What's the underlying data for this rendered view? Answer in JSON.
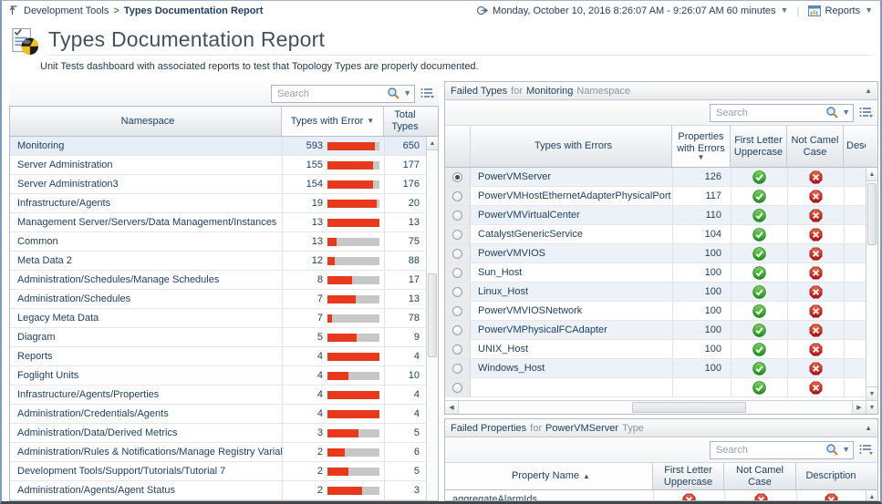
{
  "header": {
    "breadcrumb": {
      "parent": "Development Tools",
      "separator": ">",
      "current": "Types Documentation Report"
    },
    "time_range": {
      "label": "Monday, October 10, 2016 8:26:07 AM - 9:26:07 AM 60 minutes"
    },
    "reports_label": "Reports",
    "title": "Types Documentation Report",
    "subtitle": "Unit Tests dashboard with associated reports to test that Topology Types are properly documented."
  },
  "namespace_table": {
    "search_placeholder": "Search",
    "columns": [
      {
        "label": "Namespace",
        "sort": null
      },
      {
        "label": "Types with Error",
        "sort": "desc"
      },
      {
        "label": "Total Types",
        "sort": null
      }
    ],
    "rows": [
      {
        "name": "Monitoring",
        "errors": 593,
        "total": 650,
        "selected": true
      },
      {
        "name": "Server Administration",
        "errors": 155,
        "total": 177
      },
      {
        "name": "Server Administration3",
        "errors": 154,
        "total": 176
      },
      {
        "name": "Infrastructure/Agents",
        "errors": 19,
        "total": 20
      },
      {
        "name": "Management Server/Servers/Data Management/Instances",
        "errors": 13,
        "total": 13
      },
      {
        "name": "Common",
        "errors": 13,
        "total": 75
      },
      {
        "name": "Meta Data 2",
        "errors": 12,
        "total": 88
      },
      {
        "name": "Administration/Schedules/Manage Schedules",
        "errors": 8,
        "total": 17
      },
      {
        "name": "Administration/Schedules",
        "errors": 7,
        "total": 13
      },
      {
        "name": "Legacy Meta Data",
        "errors": 7,
        "total": 78
      },
      {
        "name": "Diagram",
        "errors": 5,
        "total": 9
      },
      {
        "name": "Reports",
        "errors": 4,
        "total": 4
      },
      {
        "name": "Foglight Units",
        "errors": 4,
        "total": 10
      },
      {
        "name": "Infrastructure/Agents/Properties",
        "errors": 4,
        "total": 4
      },
      {
        "name": "Administration/Credentials/Agents",
        "errors": 4,
        "total": 4
      },
      {
        "name": "Administration/Data/Derived Metrics",
        "errors": 3,
        "total": 5
      },
      {
        "name": "Administration/Rules & Notifications/Manage Registry Variables",
        "errors": 2,
        "total": 6
      },
      {
        "name": "Development Tools/Support/Tutorials/Tutorial 7",
        "errors": 2,
        "total": 5
      },
      {
        "name": "Administration/Agents/Agent Status",
        "errors": 2,
        "total": 3
      }
    ]
  },
  "failed_types_panel": {
    "title_segments": [
      {
        "text": "Failed Types",
        "dim": false
      },
      {
        "text": "for",
        "dim": true
      },
      {
        "text": "Monitoring",
        "dim": false
      },
      {
        "text": "Namespace",
        "dim": true
      }
    ],
    "search_placeholder": "Search",
    "columns": [
      {
        "label": "Types with Errors",
        "sort": null
      },
      {
        "label": "Properties with Errors",
        "sort": "desc"
      },
      {
        "label": "First Letter Uppercase",
        "sort": null
      },
      {
        "label": "Not Camel Case",
        "sort": null
      },
      {
        "label": "Description",
        "sort": null
      }
    ],
    "rows": [
      {
        "name": "PowerVMServer",
        "errors": 126,
        "first_letter_uppercase": "pass",
        "not_camel_case": "fail",
        "selected": true
      },
      {
        "name": "PowerVMHostEthernetAdapterPhysicalPort",
        "errors": 117,
        "first_letter_uppercase": "pass",
        "not_camel_case": "fail"
      },
      {
        "name": "PowerVMVirtualCenter",
        "errors": 110,
        "first_letter_uppercase": "pass",
        "not_camel_case": "fail"
      },
      {
        "name": "CatalystGenericService",
        "errors": 104,
        "first_letter_uppercase": "pass",
        "not_camel_case": "fail"
      },
      {
        "name": "PowerVMVIOS",
        "errors": 100,
        "first_letter_uppercase": "pass",
        "not_camel_case": "fail"
      },
      {
        "name": "Sun_Host",
        "errors": 100,
        "first_letter_uppercase": "pass",
        "not_camel_case": "fail"
      },
      {
        "name": "Linux_Host",
        "errors": 100,
        "first_letter_uppercase": "pass",
        "not_camel_case": "fail"
      },
      {
        "name": "PowerVMVIOSNetwork",
        "errors": 100,
        "first_letter_uppercase": "pass",
        "not_camel_case": "fail"
      },
      {
        "name": "PowerVMPhysicalFCAdapter",
        "errors": 100,
        "first_letter_uppercase": "pass",
        "not_camel_case": "fail"
      },
      {
        "name": "UNIX_Host",
        "errors": 100,
        "first_letter_uppercase": "pass",
        "not_camel_case": "fail"
      },
      {
        "name": "Windows_Host",
        "errors": 100,
        "first_letter_uppercase": "pass",
        "not_camel_case": "fail"
      },
      {
        "name": "",
        "errors": "",
        "first_letter_uppercase": "pass",
        "not_camel_case": "fail",
        "partial": true
      }
    ]
  },
  "failed_props_panel": {
    "title_segments": [
      {
        "text": "Failed Properties",
        "dim": false
      },
      {
        "text": "for",
        "dim": true
      },
      {
        "text": "PowerVMServer",
        "dim": false
      },
      {
        "text": "Type",
        "dim": true
      }
    ],
    "search_placeholder": "Search",
    "columns": [
      {
        "label": "Property Name",
        "sort": "asc"
      },
      {
        "label": "First Letter Uppercase",
        "sort": null
      },
      {
        "label": "Not Camel Case",
        "sort": null
      },
      {
        "label": "Description",
        "sort": null
      }
    ],
    "rows": [
      {
        "name": "aggregateAlarmIds",
        "first_letter_uppercase": "fail",
        "not_camel_case": "fail",
        "description": "fail"
      }
    ]
  },
  "icons": {
    "pass": "green-check-icon",
    "fail": "red-x-icon"
  },
  "colors": {
    "bar_fill": "#e8391c",
    "bar_track": "#c7c7c7",
    "pass_green": "#2f9e1f",
    "fail_red": "#cb1a1a",
    "selected_row": "#e7eef7",
    "stripe_row": "#edf2f9",
    "header_text": "#20415f"
  }
}
